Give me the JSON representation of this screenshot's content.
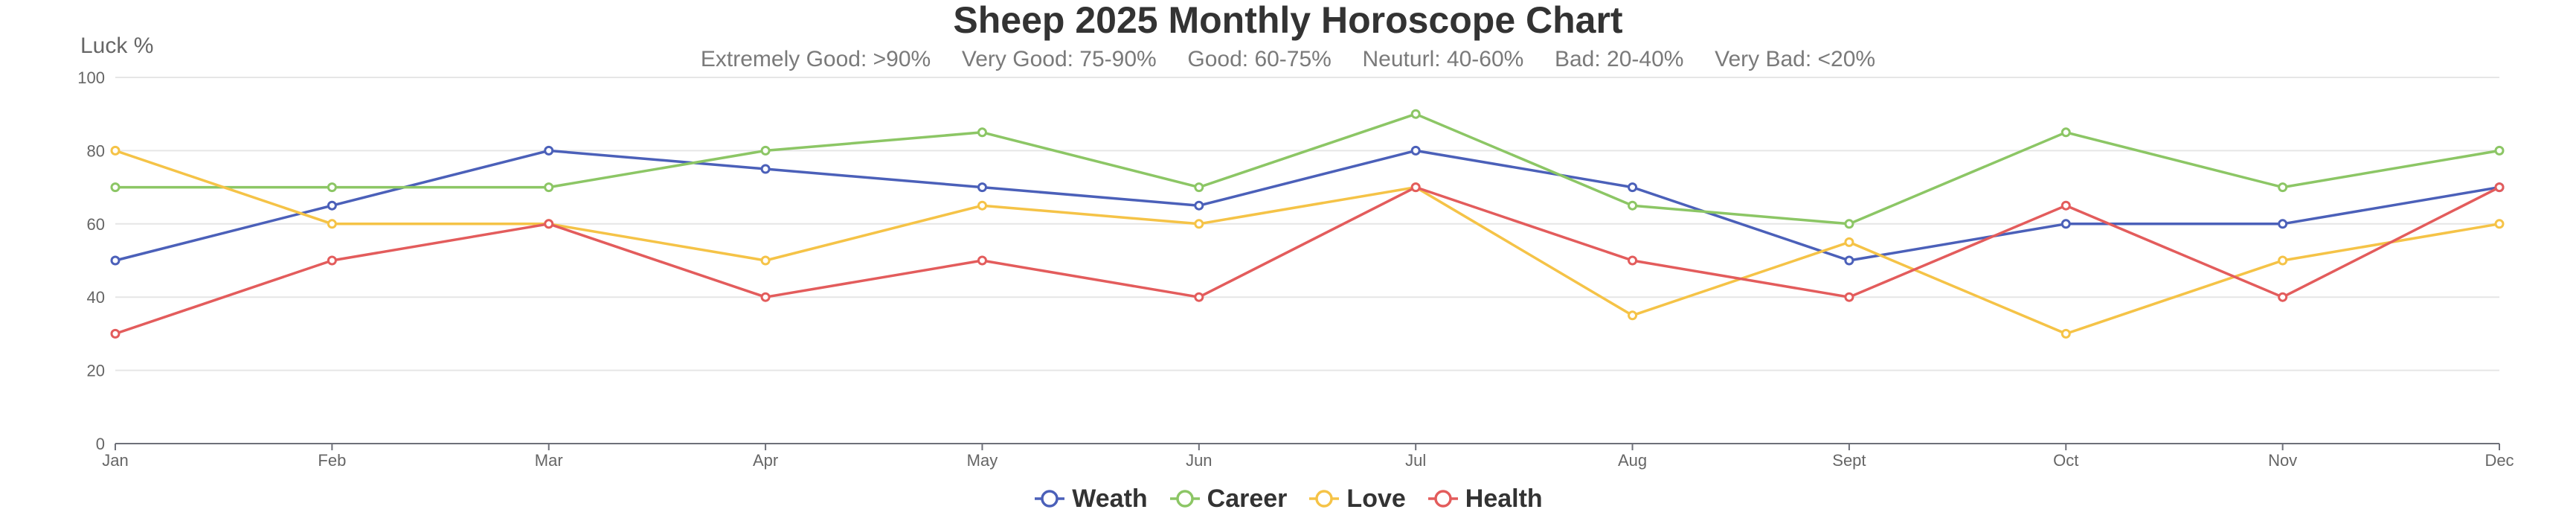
{
  "chart_data": {
    "type": "line",
    "title": "Sheep 2025 Monthly Horoscope Chart",
    "subtitle": "Extremely Good: >90%     Very Good: 75-90%     Good: 60-75%     Neuturl: 40-60%     Bad: 20-40%     Very Bad: <20%",
    "ylabel": "Luck %",
    "xlabel": "",
    "ylim": [
      0,
      100
    ],
    "yticks": [
      "0",
      "20",
      "40",
      "60",
      "80",
      "100"
    ],
    "categories": [
      "Jan",
      "Feb",
      "Mar",
      "Apr",
      "May",
      "Jun",
      "Jul",
      "Aug",
      "Sept",
      "Oct",
      "Nov",
      "Dec"
    ],
    "grid": true,
    "legend_position": "bottom-center",
    "series": [
      {
        "name": "Weath",
        "color": "#4b60b9",
        "values": [
          50,
          65,
          80,
          75,
          70,
          65,
          80,
          70,
          50,
          60,
          60,
          70
        ]
      },
      {
        "name": "Career",
        "color": "#8cc665",
        "values": [
          70,
          70,
          70,
          80,
          85,
          70,
          90,
          65,
          60,
          85,
          70,
          80
        ]
      },
      {
        "name": "Love",
        "color": "#f5c347",
        "values": [
          80,
          60,
          60,
          50,
          65,
          60,
          70,
          35,
          55,
          30,
          50,
          60
        ]
      },
      {
        "name": "Health",
        "color": "#e35c5c",
        "values": [
          30,
          50,
          60,
          40,
          50,
          40,
          70,
          50,
          40,
          65,
          40,
          70
        ]
      }
    ]
  }
}
